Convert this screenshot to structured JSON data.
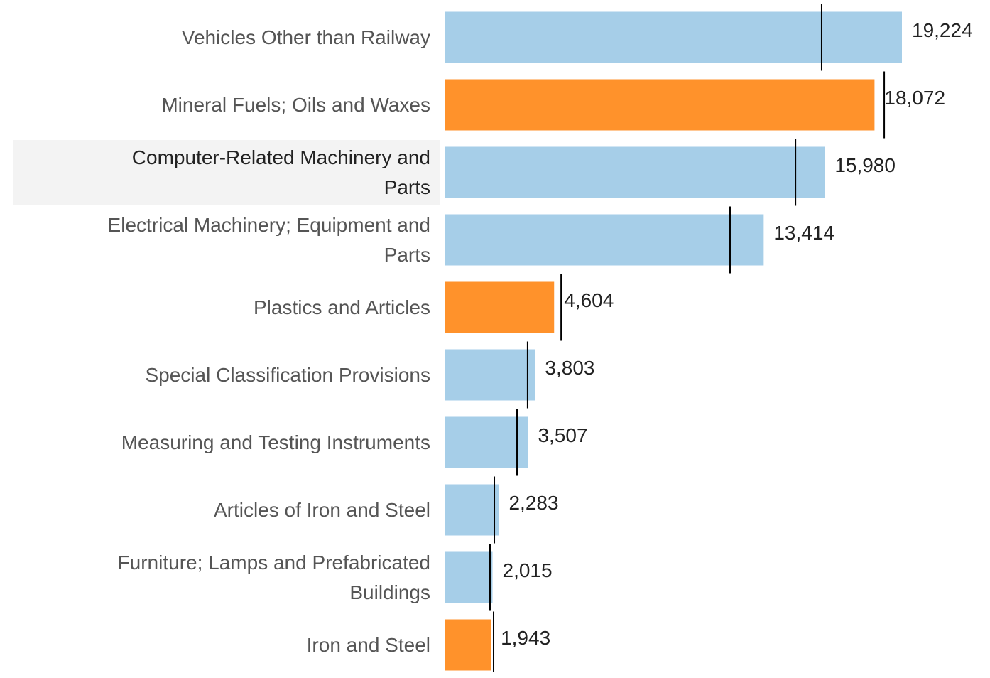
{
  "chart_data": {
    "type": "hbar",
    "categories": [
      "Vehicles Other than Railway",
      "Mineral Fuels; Oils and Waxes",
      "Computer-Related Machinery and Parts",
      "Electrical Machinery; Equipment and Parts",
      "Plastics and Articles",
      "Special Classification Provisions",
      "Measuring and Testing Instruments",
      "Articles of Iron and Steel",
      "Furniture; Lamps and Prefabricated Buildings",
      "Iron and Steel"
    ],
    "values": [
      19224,
      18072,
      15980,
      13414,
      4604,
      3803,
      3507,
      2283,
      2015,
      1943
    ],
    "value_labels": [
      "19,224",
      "18,072",
      "15,980",
      "13,414",
      "4,604",
      "3,803",
      "3,507",
      "2,283",
      "2,015",
      "1,943"
    ],
    "colors": [
      "#a6cee8",
      "#ff922b",
      "#a6cee8",
      "#a6cee8",
      "#ff922b",
      "#a6cee8",
      "#a6cee8",
      "#a6cee8",
      "#a6cee8",
      "#ff922b"
    ],
    "reference_values": [
      15850,
      18480,
      14750,
      12000,
      4900,
      3490,
      3045,
      2090,
      1910,
      2060
    ],
    "reference_color": "#000000",
    "highlighted": 2
  }
}
